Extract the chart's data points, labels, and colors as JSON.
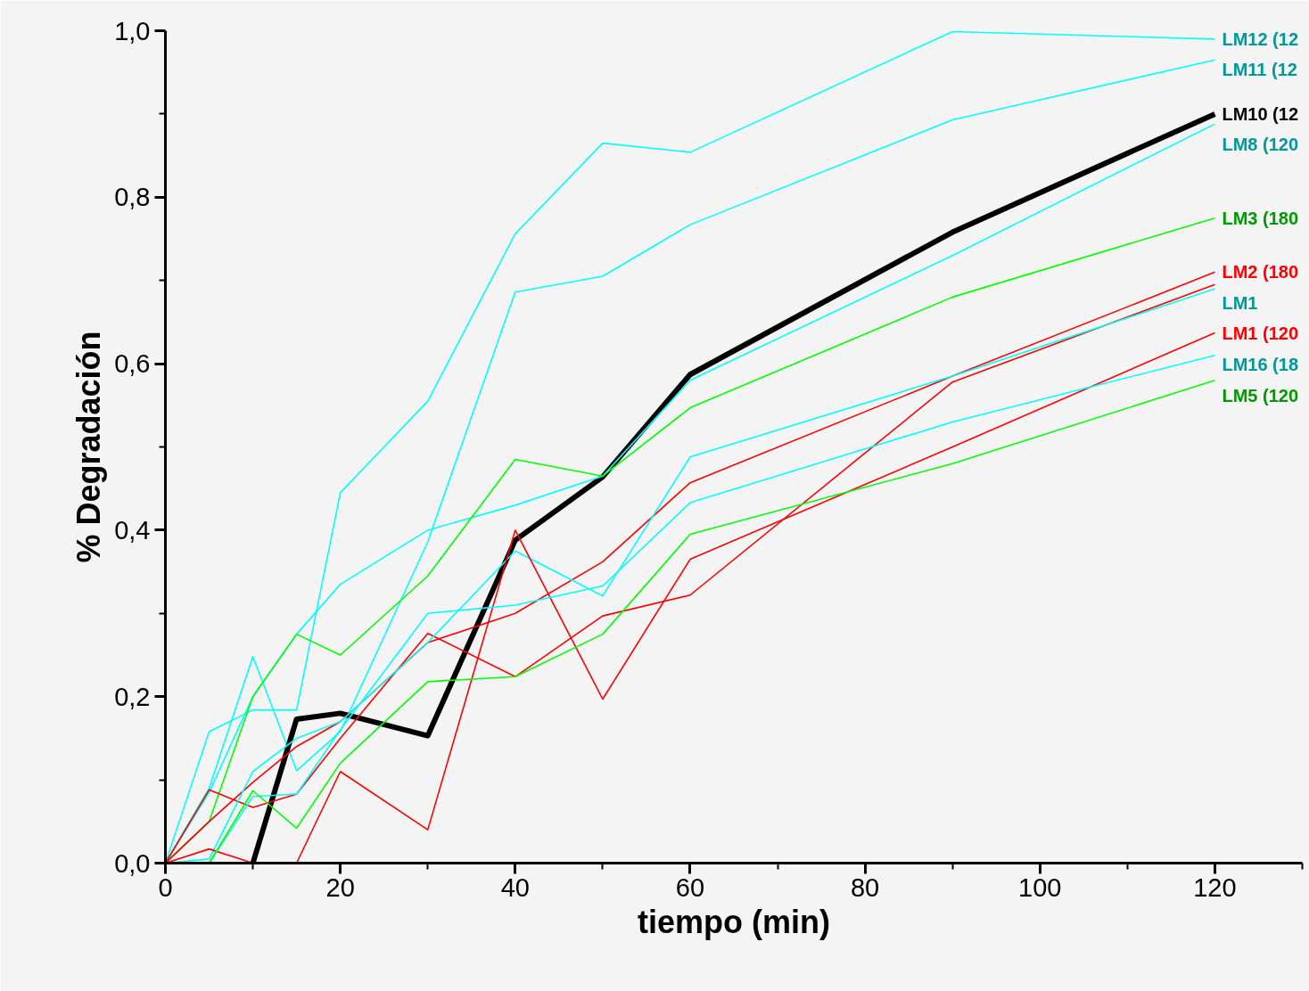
{
  "chart_data": {
    "type": "line",
    "xlabel": "tiempo (min)",
    "ylabel": "% Degradación",
    "xlim": [
      0,
      130
    ],
    "ylim": [
      0,
      1.0
    ],
    "xticks": [
      0,
      20,
      40,
      60,
      80,
      100,
      120
    ],
    "yticks": [
      {
        "value": 0,
        "label": "0,0"
      },
      {
        "value": 0.2,
        "label": "0,2"
      },
      {
        "value": 0.4,
        "label": "0,4"
      },
      {
        "value": 0.6,
        "label": "0,6"
      },
      {
        "value": 0.8,
        "label": "0,8"
      },
      {
        "value": 1.0,
        "label": "1,0"
      }
    ],
    "grid": false,
    "legend": "right",
    "marker": "none",
    "line_style": "solid",
    "x": [
      0,
      5,
      10,
      15,
      20,
      30,
      40,
      50,
      60,
      90,
      120
    ],
    "series": [
      {
        "name": "LM12 (12",
        "color": "#00ffff",
        "values": [
          0,
          0.158,
          0.184,
          0.184,
          0.445,
          0.555,
          0.756,
          0.865,
          0.854,
          0.999,
          0.99
        ]
      },
      {
        "name": "LM11 (12",
        "color": "#00ffff",
        "values": [
          0,
          0.09,
          0.248,
          0.111,
          0.158,
          0.386,
          0.686,
          0.705,
          0.767,
          0.893,
          0.965
        ]
      },
      {
        "name": "LM10 (12",
        "color": "#000000",
        "x": [
          10,
          15,
          20,
          30,
          40,
          50,
          60,
          90,
          120
        ],
        "values": [
          0,
          0.173,
          0.18,
          0.153,
          0.388,
          0.464,
          0.587,
          0.758,
          0.9
        ]
      },
      {
        "name": "LM8 (120",
        "color": "#00ffff",
        "values": [
          0,
          0.085,
          0.2,
          0.275,
          0.335,
          0.4,
          0.43,
          0.465,
          0.58,
          0.73,
          0.888
        ]
      },
      {
        "name": "LM3 (180",
        "color": "#00ff00",
        "values": [
          0,
          0.05,
          0.2,
          0.275,
          0.25,
          0.345,
          0.485,
          0.465,
          0.547,
          0.68,
          0.775
        ]
      },
      {
        "name": "LM2 (180",
        "color": "#ff0000",
        "values": [
          0,
          0.05,
          0.097,
          0.14,
          0.17,
          0.265,
          0.3,
          0.362,
          0.457,
          0.585,
          0.71
        ]
      },
      {
        "color": "#ff0000",
        "values": [
          0,
          0.088,
          0.067,
          0.083,
          0.15,
          0.276,
          0.224,
          0.297,
          0.322,
          0.578,
          0.695
        ]
      },
      {
        "name": "LM1",
        "color": "#00ffff",
        "values": [
          0,
          0.005,
          0.11,
          0.15,
          0.17,
          0.265,
          0.375,
          0.321,
          0.488,
          0.585,
          0.69
        ]
      },
      {
        "name": "LM1 (120",
        "color": "#ff0000",
        "values": [
          0,
          0.017,
          0,
          0,
          0.11,
          0.04,
          0.4,
          0.197,
          0.365,
          0.5,
          0.637
        ]
      },
      {
        "name": "LM16 (18",
        "color": "#00ffff",
        "values": [
          0,
          0,
          0.08,
          0.083,
          0.16,
          0.3,
          0.31,
          0.333,
          0.433,
          0.53,
          0.61
        ]
      },
      {
        "name": "LM5 (120",
        "color": "#00ff00",
        "values": [
          0,
          0,
          0.087,
          0.042,
          0.12,
          0.218,
          0.224,
          0.275,
          0.395,
          0.48,
          0.58
        ]
      }
    ]
  }
}
